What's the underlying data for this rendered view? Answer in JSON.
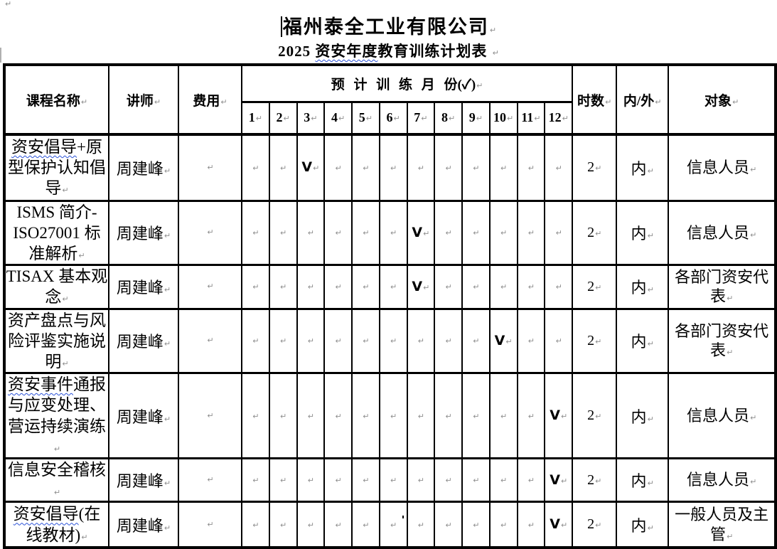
{
  "page": {
    "mark": "↵",
    "squiggle_color": "#2a52d8",
    "title1": "福州泰全工业有限公司",
    "title2_prefix": "2025 ",
    "title2_wavy": "资安年度",
    "title2_rest": "教育训练计划表"
  },
  "table": {
    "headers": {
      "course": "课程名称",
      "instructor": "讲师",
      "fee": "费用",
      "months_group": "预 计 训 练 月 份(✓)",
      "month_numbers": [
        "1",
        "2",
        "3",
        "4",
        "5",
        "6",
        "7",
        "8",
        "9",
        "10",
        "11",
        "12"
      ],
      "hours": "时数",
      "inout": "内/外",
      "audience": "对象"
    },
    "rows": [
      {
        "course_segments": [
          {
            "text": "资安倡导",
            "wavy": true
          },
          {
            "text": "+原型保护认知倡导",
            "wavy": false
          }
        ],
        "instructor": "周建峰",
        "fee": "",
        "months": [
          "",
          "",
          "V",
          "",
          "",
          "",
          "",
          "",
          "",
          "",
          "",
          ""
        ],
        "hours": "2",
        "inout": "内",
        "audience": "信息人员"
      },
      {
        "course_segments": [
          {
            "text": "ISMS 简介-ISO27001 标准解析",
            "wavy": false
          }
        ],
        "instructor": "周建峰",
        "fee": "",
        "months": [
          "",
          "",
          "",
          "",
          "",
          "",
          "V",
          "",
          "",
          "",
          "",
          ""
        ],
        "hours": "2",
        "inout": "内",
        "audience": "信息人员"
      },
      {
        "course_segments": [
          {
            "text": "TISAX 基本观念",
            "wavy": false
          }
        ],
        "instructor": "周建峰",
        "fee": "",
        "months": [
          "",
          "",
          "",
          "",
          "",
          "",
          "V",
          "",
          "",
          "",
          "",
          ""
        ],
        "hours": "2",
        "inout": "内",
        "audience": "各部门资安代表"
      },
      {
        "course_segments": [
          {
            "text": "资产盘点与风险评鉴实施说明",
            "wavy": false
          }
        ],
        "instructor": "周建峰",
        "fee": "",
        "months": [
          "",
          "",
          "",
          "",
          "",
          "",
          "",
          "",
          "",
          "V",
          "",
          ""
        ],
        "hours": "2",
        "inout": "内",
        "audience": "各部门资安代表"
      },
      {
        "course_segments": [
          {
            "text": "资安事件",
            "wavy": true
          },
          {
            "text": "通报与应变处理、营运持续演练",
            "wavy": false
          }
        ],
        "instructor": "周建峰",
        "fee": "",
        "months": [
          "",
          "",
          "",
          "",
          "",
          "",
          "",
          "",
          "",
          "",
          "",
          "V"
        ],
        "hours": "2",
        "inout": "内",
        "audience": "信息人员"
      },
      {
        "course_segments": [
          {
            "text": "信息安全稽核",
            "wavy": false
          }
        ],
        "instructor": "周建峰",
        "fee": "",
        "months": [
          "",
          "",
          "",
          "",
          "",
          "",
          "",
          "",
          "",
          "",
          "",
          "V"
        ],
        "hours": "2",
        "inout": "内",
        "audience": "信息人员"
      },
      {
        "course_segments": [
          {
            "text": "资安倡导",
            "wavy": true
          },
          {
            "text": "(在线教材)",
            "wavy": false
          }
        ],
        "instructor": "周建峰",
        "fee": "",
        "months": [
          "",
          "",
          "",
          "",
          "",
          "",
          "",
          "",
          "",
          "",
          "",
          "V"
        ],
        "hours": "2",
        "inout": "内",
        "audience": "一般人员及主管"
      }
    ]
  }
}
